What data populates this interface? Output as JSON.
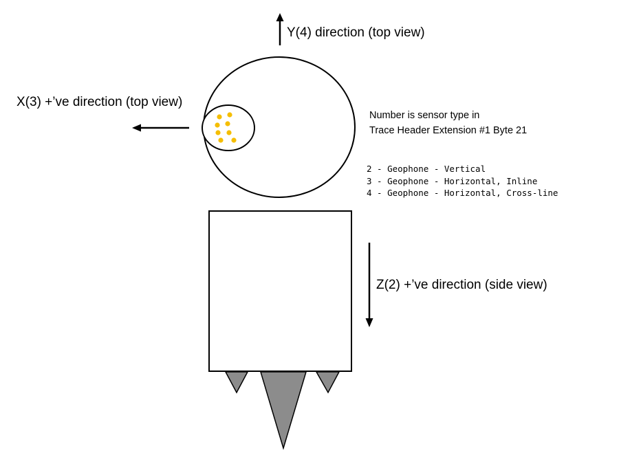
{
  "labels": {
    "y_axis": "Y(4) direction (top view)",
    "x_axis": "X(3) +’ve direction (top view)",
    "z_axis": "Z(2) +’ve direction (side view)"
  },
  "note": {
    "line1": "Number is sensor type in",
    "line2": "Trace Header Extension #1 Byte 21"
  },
  "sensor_types": [
    "2 - Geophone - Vertical",
    "3 - Geophone - Horizontal, Inline",
    "4 - Geophone - Horizontal, Cross-line"
  ],
  "colors": {
    "sensor_dot": "#f5be00",
    "spike_fill": "#8c8c8c",
    "outline": "#000000"
  }
}
